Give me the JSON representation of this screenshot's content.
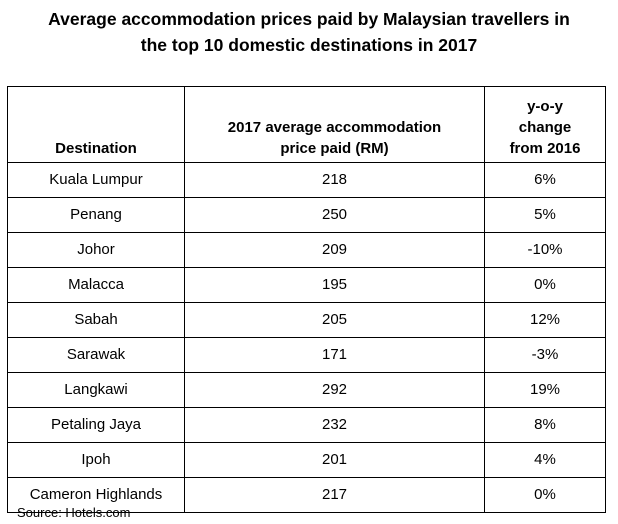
{
  "chart_data": {
    "type": "table",
    "title_lines": [
      "Average accommodation prices paid by Malaysian travellers in",
      "the top 10 domestic destinations in 2017"
    ],
    "columns": [
      {
        "lines": [
          "Destination"
        ]
      },
      {
        "lines": [
          "2017 average accommodation",
          "price paid (RM)"
        ]
      },
      {
        "lines": [
          "y-o-y",
          "change",
          "from 2016"
        ]
      }
    ],
    "rows": [
      {
        "destination": "Kuala Lumpur",
        "price": "218",
        "change": "6%"
      },
      {
        "destination": "Penang",
        "price": "250",
        "change": "5%"
      },
      {
        "destination": "Johor",
        "price": "209",
        "change": "-10%"
      },
      {
        "destination": "Malacca",
        "price": "195",
        "change": "0%"
      },
      {
        "destination": "Sabah",
        "price": "205",
        "change": "12%"
      },
      {
        "destination": "Sarawak",
        "price": "171",
        "change": "-3%"
      },
      {
        "destination": "Langkawi",
        "price": "292",
        "change": "19%"
      },
      {
        "destination": "Petaling Jaya",
        "price": "232",
        "change": "8%"
      },
      {
        "destination": "Ipoh",
        "price": "201",
        "change": "4%"
      },
      {
        "destination": "Cameron Highlands",
        "price": "217",
        "change": "0%"
      }
    ],
    "source": "Source: Hotels.com"
  }
}
